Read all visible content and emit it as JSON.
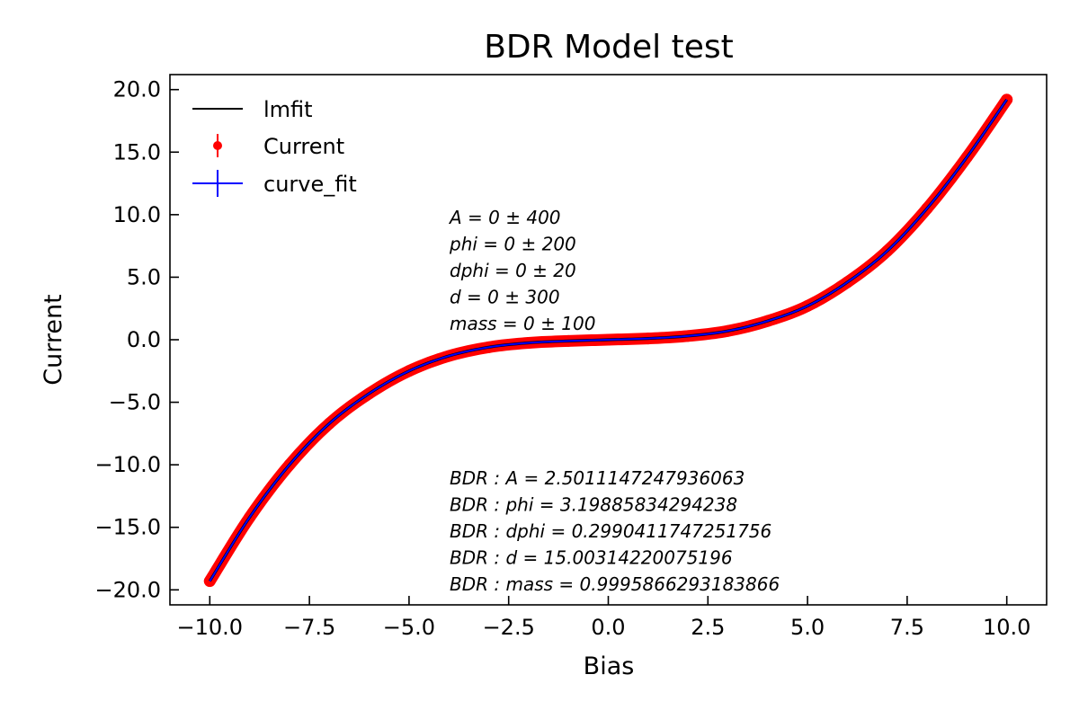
{
  "chart_data": {
    "type": "scatter",
    "title": "BDR Model test",
    "xlabel": "Bias",
    "ylabel": "Current",
    "xlim": [
      -11,
      11
    ],
    "ylim": [
      -21.2,
      21.2
    ],
    "xticks": [
      -10,
      -7.5,
      -5,
      -2.5,
      0,
      2.5,
      5,
      7.5,
      10
    ],
    "xtick_labels": [
      "−10.0",
      "−7.5",
      "−5.0",
      "−2.5",
      "0.0",
      "2.5",
      "5.0",
      "7.5",
      "10.0"
    ],
    "yticks": [
      -20,
      -15,
      -10,
      -5,
      0,
      5,
      10,
      15,
      20
    ],
    "ytick_labels": [
      "−20.0",
      "−15.0",
      "−10.0",
      "−5.0",
      "0.0",
      "5.0",
      "10.0",
      "15.0",
      "20.0"
    ],
    "grid": false,
    "legend_position": "upper-left",
    "series": [
      {
        "name": "lmfit",
        "kind": "line",
        "color": "#000000",
        "x": [
          -10,
          -9,
          -8,
          -7,
          -6,
          -5,
          -4,
          -3,
          -2,
          -1,
          0,
          1,
          2,
          3,
          4,
          5,
          6,
          7,
          8,
          9,
          10
        ],
        "y": [
          -19.3,
          -14.2,
          -10.0,
          -6.7,
          -4.3,
          -2.5,
          -1.3,
          -0.6,
          -0.25,
          -0.1,
          0.0,
          0.1,
          0.3,
          0.7,
          1.5,
          2.7,
          4.6,
          7.1,
          10.5,
          14.6,
          19.2
        ]
      },
      {
        "name": "Current",
        "kind": "scatter",
        "color": "#ff0000",
        "x": [
          -10,
          -9,
          -8,
          -7,
          -6,
          -5,
          -4,
          -3,
          -2,
          -1,
          0,
          1,
          2,
          3,
          4,
          5,
          6,
          7,
          8,
          9,
          10
        ],
        "y": [
          -19.3,
          -14.2,
          -10.0,
          -6.7,
          -4.3,
          -2.5,
          -1.3,
          -0.6,
          -0.25,
          -0.1,
          0.0,
          0.1,
          0.3,
          0.7,
          1.5,
          2.7,
          4.6,
          7.1,
          10.5,
          14.6,
          19.2
        ]
      },
      {
        "name": "curve_fit",
        "kind": "line",
        "color": "#0000ff",
        "x": [
          -10,
          -9,
          -8,
          -7,
          -6,
          -5,
          -4,
          -3,
          -2,
          -1,
          0,
          1,
          2,
          3,
          4,
          5,
          6,
          7,
          8,
          9,
          10
        ],
        "y": [
          -19.3,
          -14.2,
          -10.0,
          -6.7,
          -4.3,
          -2.5,
          -1.3,
          -0.6,
          -0.25,
          -0.1,
          0.0,
          0.1,
          0.3,
          0.7,
          1.5,
          2.7,
          4.6,
          7.1,
          10.5,
          14.6,
          19.2
        ]
      }
    ],
    "annotations_top": [
      "A = 0 ± 400",
      "phi = 0 ± 200",
      "dphi = 0 ± 20",
      "d = 0 ± 300",
      "mass = 0 ± 100"
    ],
    "annotations_bottom": [
      "BDR : A = 2.5011147247936063",
      "BDR : phi = 3.19885834294238",
      "BDR : dphi = 0.2990411747251756",
      "BDR : d = 15.00314220075196",
      "BDR : mass = 0.9995866293183866"
    ]
  }
}
